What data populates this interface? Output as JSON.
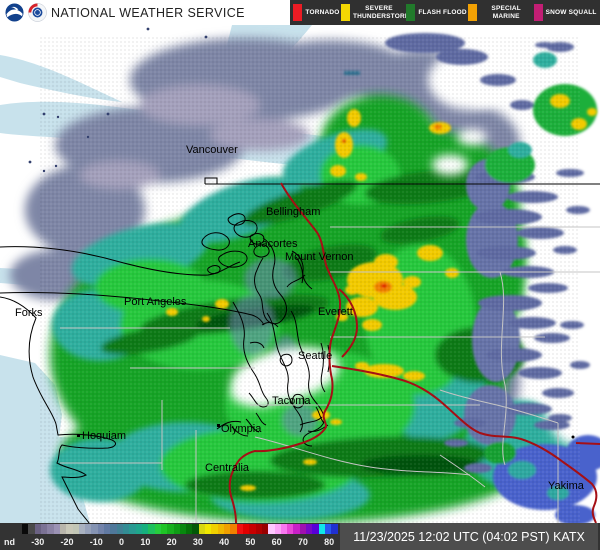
{
  "header": {
    "title": "NATIONAL WEATHER SERVICE",
    "logos": [
      "noaa-logo",
      "nws-logo"
    ],
    "legend": [
      {
        "label": "TORNADO",
        "color": "#eb1c24"
      },
      {
        "label": "SEVERE THUNDERSTORM",
        "color": "#f3d703"
      },
      {
        "label": "FLASH FLOOD",
        "color": "#217a2b"
      },
      {
        "label": "SPECIAL MARINE",
        "color": "#f2a104"
      },
      {
        "label": "SNOW SQUALL",
        "color": "#c21e74"
      }
    ]
  },
  "map": {
    "cities": [
      "Vancouver",
      "Bellingham",
      "Anacortes",
      "Mount Vernon",
      "Port Angeles",
      "Forks",
      "Everett",
      "Seattle",
      "Tacoma",
      "Olympia",
      "Hoquiam",
      "Centralia",
      "Yakima"
    ],
    "accent_colors": {
      "water": "#c8e2ec",
      "highway": "#a50f15",
      "county_line": "#c4c4c4",
      "border": "#000000"
    }
  },
  "footer": {
    "scale_labels": [
      "nd",
      "-30",
      "-20",
      "-10",
      "0",
      "10",
      "20",
      "30",
      "40",
      "50",
      "60",
      "70",
      "80",
      "dBZ"
    ],
    "scale_colors": [
      "#0a0a0a",
      "#4a4a4a",
      "#6b6283",
      "#7b7294",
      "#8b82a4",
      "#9b92b4",
      "#b8b5ab",
      "#c9c8b8",
      "#c2c6b6",
      "#a9b2c0",
      "#97a2ba",
      "#8593b2",
      "#7383aa",
      "#6179a2",
      "#4f789a",
      "#418094",
      "#338c94",
      "#299a92",
      "#1fa68c",
      "#17b07e",
      "#1fc05e",
      "#27cc3e",
      "#1fc426",
      "#17b01e",
      "#0f9c16",
      "#07880e",
      "#047008",
      "#025806",
      "#d8d80e",
      "#f0e800",
      "#f0d000",
      "#f0b800",
      "#f0a000",
      "#f08000",
      "#f01010",
      "#e00000",
      "#c80000",
      "#b00000",
      "#980000",
      "#ffc8ff",
      "#fca4f8",
      "#f878f0",
      "#e848d8",
      "#c820c8",
      "#a010b0",
      "#7808c8",
      "#5800d8",
      "#10e8e8",
      "#2858f0",
      "#2030d0"
    ],
    "timestamp": "11/23/2025 12:02 UTC (04:02 PST)  KATX"
  }
}
